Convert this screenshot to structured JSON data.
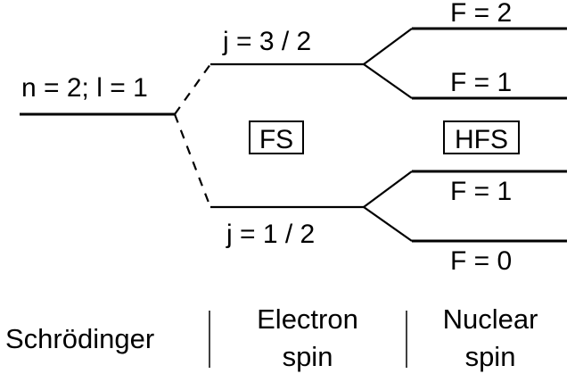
{
  "levels": {
    "base": "n = 2; l = 1",
    "fine_upper": "j = 3 / 2",
    "fine_lower": "j = 1 / 2",
    "hyperfine_1": "F = 2",
    "hyperfine_2": "F = 1",
    "hyperfine_3": "F = 1",
    "hyperfine_4": "F = 0"
  },
  "boxes": {
    "fine_structure": "FS",
    "hyperfine_structure": "HFS"
  },
  "columns": {
    "schrodinger": "Schrödinger",
    "electron_line1": "Electron",
    "electron_line2": "spin",
    "nuclear_line1": "Nuclear",
    "nuclear_line2": "spin"
  }
}
